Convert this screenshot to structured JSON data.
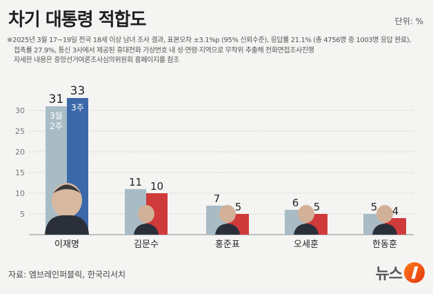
{
  "title": "차기 대통령 적합도",
  "unit": "단위: %",
  "notes": [
    "※2025년 3월 17~19일 전국 18세 이상 남녀 조사 결과, 표본오차 ±3.1%p (95% 신뢰수준), 응답률 21.1% (총 4756명 중 1003명 응답 완료),",
    "접촉률 27.9%, 통신 3사에서 제공된 휴대전화 가상번호 내 성·연령·지역으로 무작위 추출해 전화면접조사진행",
    "자세한 내용은 중앙선거여론조사심의위원회 홈페이지를 참조"
  ],
  "source": "자료: 엠브레인퍼블릭, 한국리서치",
  "logo_text": "뉴스",
  "chart_data": {
    "type": "bar",
    "categories": [
      "이재명",
      "김문수",
      "홍준표",
      "오세훈",
      "한동훈"
    ],
    "series": [
      {
        "name": "3월 2주",
        "values": [
          31,
          11,
          7,
          6,
          5
        ],
        "color": "#a9bcc6"
      },
      {
        "name": "3주",
        "values": [
          33,
          10,
          5,
          5,
          4
        ],
        "color_first": "#3b68a8",
        "color": "#cf3a3a"
      }
    ],
    "ylim": [
      0,
      35
    ],
    "yticks": [
      5,
      10,
      15,
      20,
      25,
      30
    ],
    "grid": true
  },
  "colors": {
    "bar_prev": "#a9bcc6",
    "bar_curr_lee": "#3b68a8",
    "bar_curr_other": "#cf3a3a",
    "grid": "#cfcfcf"
  }
}
